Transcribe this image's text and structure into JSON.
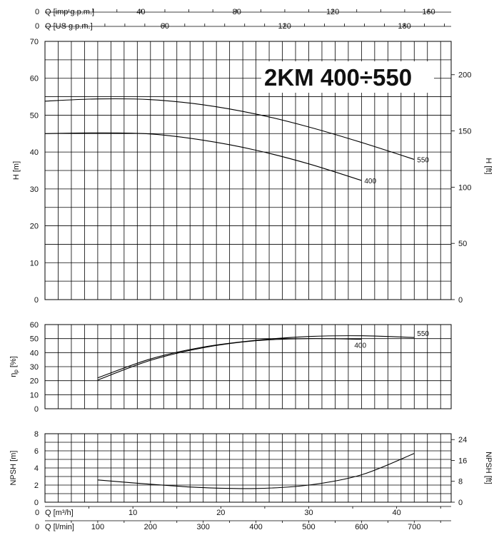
{
  "chart_data": [
    {
      "type": "line",
      "title": "2KM 400÷550",
      "ylabel": "H [m]",
      "ylabel_right": "H [ft]",
      "xlim": [
        0,
        770
      ],
      "ylim": [
        0,
        70
      ],
      "y_ticks": [
        0,
        10,
        20,
        30,
        40,
        50,
        60,
        70
      ],
      "y_right_ticks": [
        0,
        50,
        100,
        150,
        200
      ],
      "top_axes": [
        {
          "label": "Q [imp g.p.m.]",
          "ticks": [
            "40",
            "80",
            "120",
            "160"
          ],
          "values": [
            40,
            80,
            120,
            160
          ]
        },
        {
          "label": "Q [US g.p.m.]",
          "ticks": [
            "60",
            "120",
            "180"
          ],
          "values": [
            60,
            120,
            180
          ]
        }
      ],
      "top_axes_zero": "0",
      "series": [
        {
          "name": "550",
          "x": [
            0,
            100,
            200,
            300,
            400,
            500,
            600,
            700
          ],
          "y": [
            53.8,
            54.4,
            54.2,
            52.8,
            50.3,
            46.8,
            42.6,
            38.0
          ]
        },
        {
          "name": "400",
          "x": [
            0,
            100,
            200,
            300,
            400,
            500,
            600
          ],
          "y": [
            45.0,
            45.2,
            44.9,
            43.2,
            40.5,
            36.8,
            32.3
          ]
        }
      ]
    },
    {
      "type": "line",
      "ylabel": "η p [%]",
      "ylabel_main": "η",
      "ylabel_sub": "p",
      "ylabel_unit": "[%]",
      "ylim": [
        0,
        60
      ],
      "y_ticks": [
        0,
        10,
        20,
        30,
        40,
        50,
        60
      ],
      "series": [
        {
          "name": "550",
          "x": [
            100,
            200,
            300,
            400,
            500,
            600,
            700
          ],
          "y": [
            22.0,
            35.5,
            44.0,
            48.8,
            51.5,
            52.0,
            50.8
          ]
        },
        {
          "name": "400",
          "x": [
            100,
            200,
            300,
            400,
            500,
            600
          ],
          "y": [
            20.5,
            34.5,
            43.5,
            48.5,
            50.0,
            49.5
          ]
        }
      ]
    },
    {
      "type": "line",
      "ylabel": "NPSH [m]",
      "ylabel_right": "NPSH [ft]",
      "ylim": [
        0,
        8
      ],
      "y_ticks": [
        0,
        2,
        4,
        6,
        8
      ],
      "y_right_ticks": [
        0,
        8,
        16,
        24
      ],
      "series": [
        {
          "x": [
            100,
            200,
            300,
            400,
            500,
            600,
            700
          ],
          "y": [
            2.6,
            2.1,
            1.7,
            1.6,
            2.0,
            3.2,
            5.7
          ]
        }
      ]
    }
  ],
  "bottom_axes": [
    {
      "label": "Q [m³/h]",
      "ticks": [
        "10",
        "20",
        "30",
        "40"
      ],
      "values": [
        10,
        20,
        30,
        40
      ],
      "zero": "0"
    },
    {
      "label": "Q [l/min]",
      "ticks": [
        "100",
        "200",
        "300",
        "400",
        "500",
        "600",
        "700"
      ],
      "values": [
        100,
        200,
        300,
        400,
        500,
        600,
        700
      ],
      "zero": "0"
    }
  ]
}
